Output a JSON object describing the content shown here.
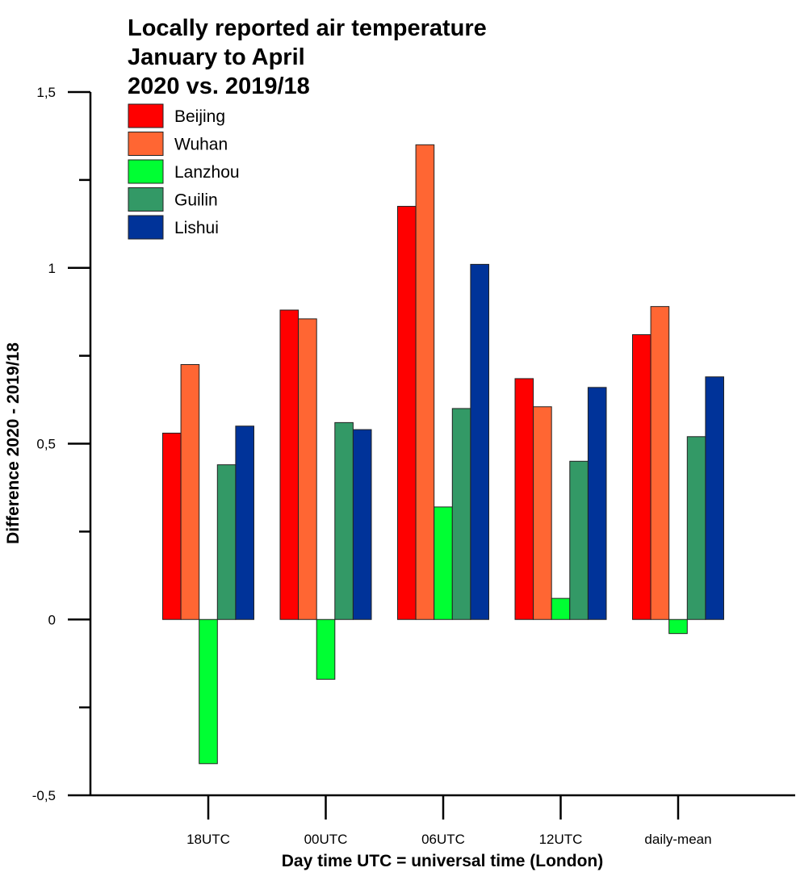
{
  "chart_data": {
    "type": "bar",
    "title_lines": [
      "Locally reported air temperature",
      "January to April",
      "2020 vs. 2019/18"
    ],
    "xlabel": "Day time UTC = universal time (London)",
    "ylabel": "Difference 2020 - 2019/18",
    "ylim": [
      -0.5,
      1.5
    ],
    "yticks": [
      -0.5,
      0,
      0.5,
      1,
      1.5
    ],
    "ytick_labels": [
      "-0,5",
      "0",
      "0,5",
      "1",
      "1,5"
    ],
    "categories": [
      "18UTC",
      "00UTC",
      "06UTC",
      "12UTC",
      "daily-mean"
    ],
    "series": [
      {
        "name": "Beijing",
        "color": "#ff0000",
        "values": [
          0.53,
          0.88,
          1.175,
          0.685,
          0.81
        ]
      },
      {
        "name": "Wuhan",
        "color": "#ff6633",
        "values": [
          0.725,
          0.855,
          1.35,
          0.605,
          0.89
        ]
      },
      {
        "name": "Lanzhou",
        "color": "#00ff33",
        "values": [
          -0.41,
          -0.17,
          0.32,
          0.06,
          -0.04
        ]
      },
      {
        "name": "Guilin",
        "color": "#339966",
        "values": [
          0.44,
          0.56,
          0.6,
          0.45,
          0.52
        ]
      },
      {
        "name": "Lishui",
        "color": "#003399",
        "values": [
          0.55,
          0.54,
          1.01,
          0.66,
          0.69
        ]
      }
    ],
    "legend_position": "top-left",
    "grid": false
  }
}
